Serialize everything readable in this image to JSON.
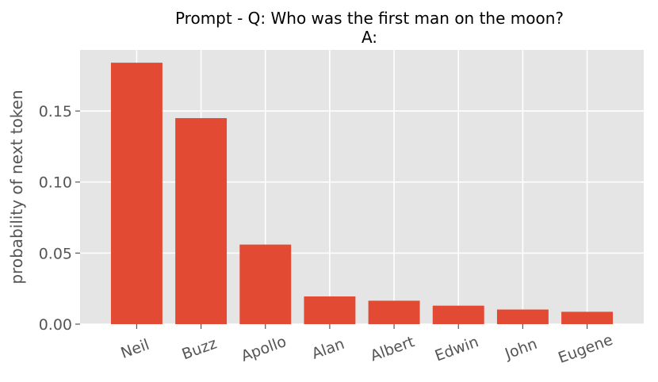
{
  "chart_data": {
    "type": "bar",
    "title_lines": [
      "Prompt - Q: Who was the first man on the moon?",
      "A:"
    ],
    "xlabel": "",
    "ylabel": "probability of next token",
    "categories": [
      "Neil",
      "Buzz",
      "Apollo",
      "Alan",
      "Albert",
      "Edwin",
      "John",
      "Eugene"
    ],
    "values": [
      0.184,
      0.145,
      0.056,
      0.0195,
      0.0165,
      0.013,
      0.0103,
      0.0087
    ],
    "ylim": [
      0,
      0.193
    ],
    "yticks": [
      0.0,
      0.05,
      0.1,
      0.15
    ],
    "ytick_labels": [
      "0.00",
      "0.05",
      "0.10",
      "0.15"
    ],
    "grid": true,
    "colors": {
      "bar": "#E24A33",
      "plot_bg": "#E5E5E5",
      "grid": "#FFFFFF"
    }
  }
}
